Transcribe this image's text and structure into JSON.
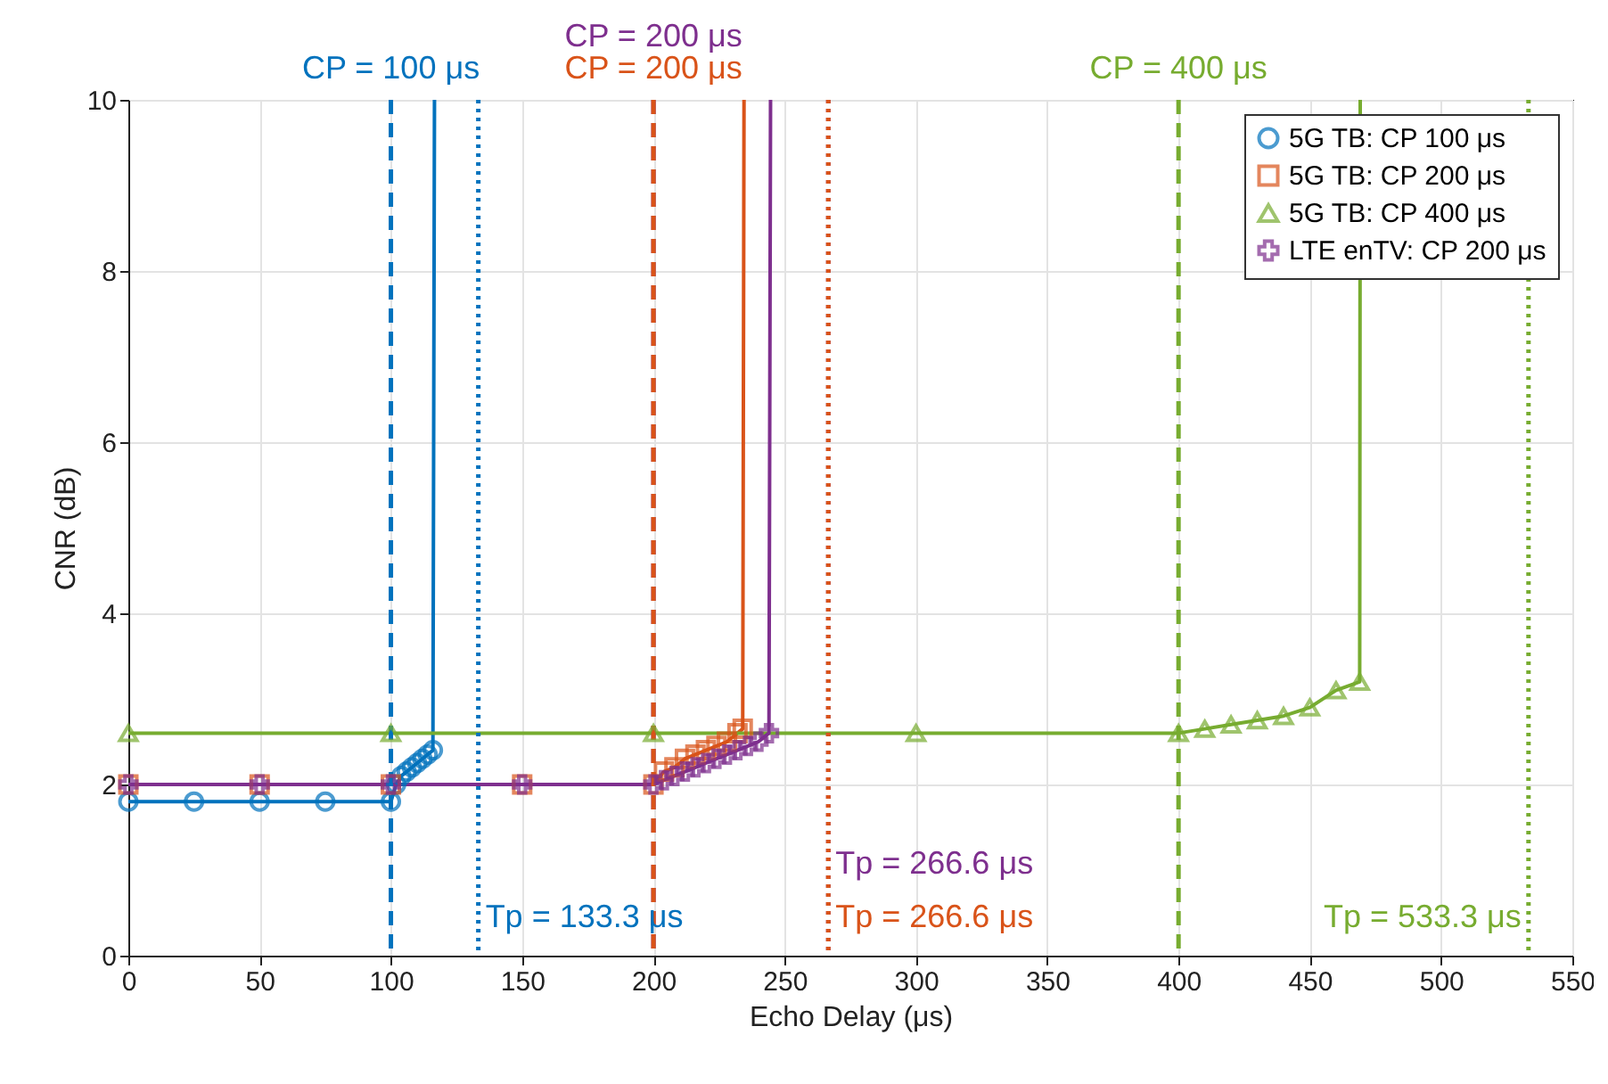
{
  "chart_data": {
    "type": "line",
    "xlabel": "Echo Delay (μs)",
    "ylabel": "CNR (dB)",
    "xlim": [
      0,
      550
    ],
    "xticks": [
      0,
      50,
      100,
      150,
      200,
      250,
      300,
      350,
      400,
      450,
      500,
      550
    ],
    "ylim": [
      0,
      10
    ],
    "yticks": [
      0,
      2,
      4,
      6,
      8,
      10
    ],
    "grid": true,
    "legend": "top right",
    "series": [
      {
        "name": "5G TB: CP 100 μs",
        "color": "#0072bd",
        "marker": "circle",
        "x": [
          0,
          25,
          50,
          75,
          100,
          102,
          104,
          106,
          108,
          110,
          112,
          114,
          116,
          116.6
        ],
        "values": [
          1.8,
          1.8,
          1.8,
          1.8,
          1.8,
          2.0,
          2.1,
          2.15,
          2.2,
          2.25,
          2.3,
          2.35,
          2.4,
          10
        ]
      },
      {
        "name": "5G TB: CP 200 μs",
        "color": "#d95319",
        "marker": "square",
        "x": [
          0,
          50,
          100,
          150,
          200,
          204,
          208,
          212,
          216,
          220,
          224,
          228,
          232,
          234,
          234.5
        ],
        "values": [
          2.0,
          2.0,
          2.0,
          2.0,
          2.0,
          2.15,
          2.2,
          2.3,
          2.35,
          2.4,
          2.45,
          2.5,
          2.6,
          2.65,
          10
        ]
      },
      {
        "name": "5G TB: CP 400 μs",
        "color": "#77ac30",
        "marker": "triangle",
        "x": [
          0,
          100,
          200,
          300,
          400,
          410,
          420,
          430,
          440,
          450,
          460,
          469,
          469.2
        ],
        "values": [
          2.6,
          2.6,
          2.6,
          2.6,
          2.6,
          2.65,
          2.7,
          2.75,
          2.8,
          2.9,
          3.1,
          3.2,
          10
        ]
      },
      {
        "name": "LTE enTV: CP 200 μs",
        "color": "#7e2f8e",
        "marker": "cross",
        "x": [
          0,
          50,
          100,
          150,
          200,
          204,
          208,
          212,
          216,
          220,
          224,
          228,
          232,
          236,
          240,
          244,
          244.6
        ],
        "values": [
          2.0,
          2.0,
          2.0,
          2.0,
          2.0,
          2.05,
          2.1,
          2.15,
          2.2,
          2.25,
          2.3,
          2.35,
          2.4,
          2.45,
          2.5,
          2.6,
          10
        ]
      }
    ],
    "ref_lines": [
      {
        "axis": "x",
        "value": 100,
        "label": "CP = 100 μs",
        "color": "#0072bd",
        "line_style": "dashed"
      },
      {
        "axis": "x",
        "value": 200,
        "label": "CP = 200 μs",
        "color": "#7e2f8e",
        "line_style": "dashed"
      },
      {
        "axis": "x",
        "value": 200,
        "label": "CP = 200 μs",
        "color": "#d95319",
        "line_style": "dashed"
      },
      {
        "axis": "x",
        "value": 400,
        "label": "CP = 400 μs",
        "color": "#77ac30",
        "line_style": "dashed"
      },
      {
        "axis": "x",
        "value": 133.3,
        "label": "Tp = 133.3 μs",
        "color": "#0072bd",
        "line_style": "dotted"
      },
      {
        "axis": "x",
        "value": 266.6,
        "label": "Tp = 266.6 μs",
        "color": "#7e2f8e",
        "line_style": "dotted"
      },
      {
        "axis": "x",
        "value": 266.6,
        "label": "Tp = 266.6 μs",
        "color": "#d95319",
        "line_style": "dotted"
      },
      {
        "axis": "x",
        "value": 533.3,
        "label": "Tp = 533.3 μs",
        "color": "#77ac30",
        "line_style": "dotted"
      }
    ]
  }
}
